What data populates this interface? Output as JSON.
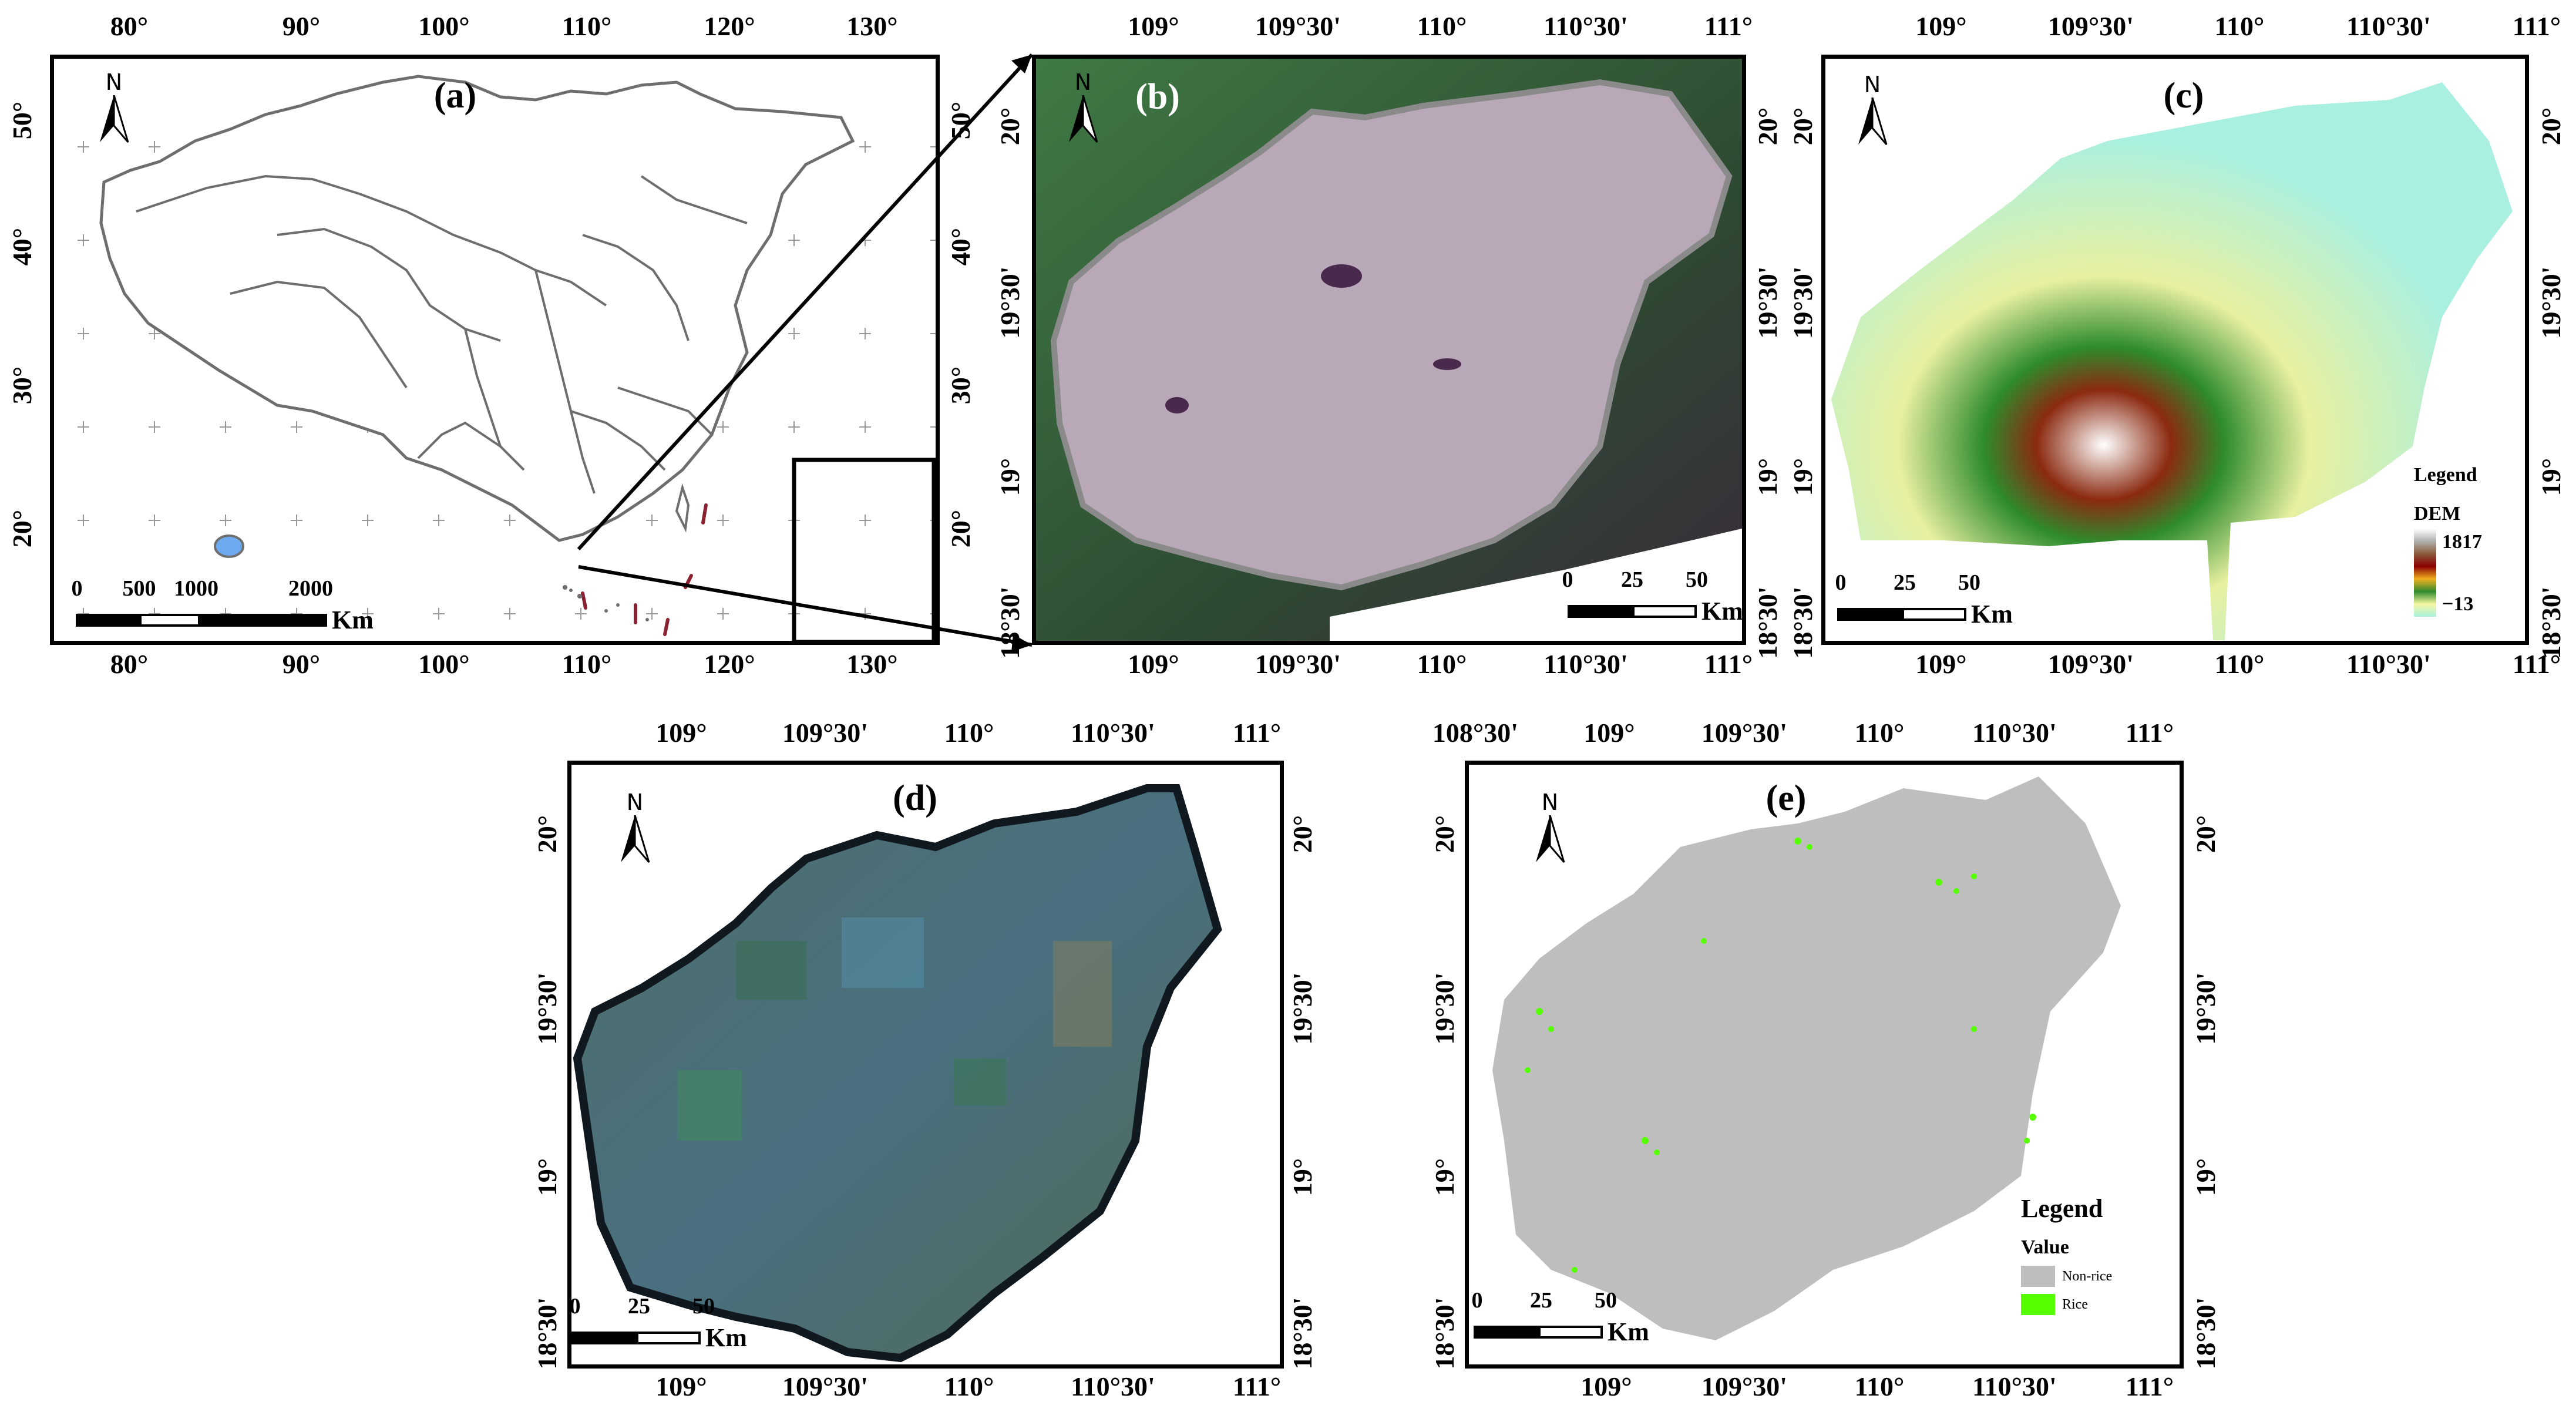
{
  "figure": {
    "panels": [
      {
        "id": "a",
        "label": "(a)",
        "description": "Map of China with provincial boundaries; Hainan Island highlighted in blue; South China Sea inset",
        "top_ticks": [
          "80°",
          "90°",
          "100°",
          "110°",
          "120°",
          "130°"
        ],
        "bottom_ticks": [
          "80°",
          "90°",
          "100°",
          "110°",
          "120°",
          "130°"
        ],
        "left_ticks": [
          "50°",
          "40°",
          "30°",
          "20°"
        ],
        "right_ticks": [
          "50°",
          "40°",
          "30°",
          "20°"
        ],
        "north": "N",
        "scale": {
          "numbers": [
            "0",
            "500",
            "1000",
            "2000"
          ],
          "unit": "Km"
        },
        "colors": {
          "boundary": "#6e6e6e",
          "highlight": "#6eaaf0",
          "dashed_line": "#8b2232"
        }
      },
      {
        "id": "b",
        "label": "(b)",
        "description": "Sentinel-1 SAR false-color composite of Hainan Island",
        "top_ticks": [
          "109°",
          "109°30'",
          "110°",
          "110°30'",
          "111°"
        ],
        "bottom_ticks": [
          "109°",
          "109°30'",
          "110°",
          "110°30'",
          "111°"
        ],
        "left_ticks": [
          "20°",
          "19°30'",
          "19°",
          "18°30'"
        ],
        "right_ticks": [
          "20°",
          "19°30'",
          "19°",
          "18°30'"
        ],
        "north": "N",
        "scale": {
          "numbers": [
            "0",
            "25",
            "50"
          ],
          "unit": "Km"
        },
        "colors": {
          "sea": "#3d6b40",
          "land": "#b8a8b8",
          "dark_sea": "#3a2a3c"
        }
      },
      {
        "id": "c",
        "label": "(c)",
        "description": "Digital Elevation Model of Hainan Island",
        "top_ticks": [
          "109°",
          "109°30'",
          "110°",
          "110°30'",
          "111°"
        ],
        "bottom_ticks": [
          "109°",
          "109°30'",
          "110°",
          "110°30'",
          "111°"
        ],
        "left_ticks": [
          "20°",
          "19°30'",
          "19°",
          "18°30'"
        ],
        "right_ticks": [
          "20°",
          "19°30'",
          "19°",
          "18°30'"
        ],
        "north": "N",
        "scale": {
          "numbers": [
            "0",
            "25",
            "50"
          ],
          "unit": "Km"
        },
        "legend": {
          "title": "Legend",
          "subtitle": "DEM",
          "max": "1817",
          "min": "−13"
        },
        "colors": {
          "ramp": [
            "#ffffff",
            "#b0b0b0",
            "#8b5a3c",
            "#8b0000",
            "#f0b020",
            "#2e8b2e",
            "#f5f5a0",
            "#aaf0e0"
          ]
        }
      },
      {
        "id": "d",
        "label": "(d)",
        "description": "Optical (Sentinel-2 true-color) mosaic of Hainan Island",
        "top_ticks": [
          "109°",
          "109°30'",
          "110°",
          "110°30'",
          "111°"
        ],
        "bottom_ticks": [
          "109°",
          "109°30'",
          "110°",
          "110°30'",
          "111°"
        ],
        "left_ticks": [
          "20°",
          "19°30'",
          "19°",
          "18°30'"
        ],
        "right_ticks": [
          "20°",
          "19°30'",
          "19°",
          "18°30'"
        ],
        "north": "N",
        "scale": {
          "numbers": [
            "0",
            "25",
            "50"
          ],
          "unit": "Km"
        },
        "colors": {
          "land": "#4a6a6a",
          "edge": "#101820"
        }
      },
      {
        "id": "e",
        "label": "(e)",
        "description": "Rice / non-rice classification map of Hainan Island",
        "top_ticks": [
          "108°30'",
          "109°",
          "109°30'",
          "110°",
          "110°30'",
          "111°"
        ],
        "bottom_ticks": [
          "109°",
          "109°30'",
          "110°",
          "110°30'",
          "111°"
        ],
        "left_ticks": [
          "20°",
          "19°30'",
          "19°",
          "18°30'"
        ],
        "right_ticks": [
          "20°",
          "19°30'",
          "19°",
          "18°30'"
        ],
        "north": "N",
        "scale": {
          "numbers": [
            "0",
            "25",
            "50"
          ],
          "unit": "Km"
        },
        "legend": {
          "title": "Legend",
          "subtitle": "Value",
          "items": [
            {
              "label": "Non-rice",
              "color": "#bebebe"
            },
            {
              "label": "Rice",
              "color": "#55ff00"
            }
          ]
        }
      }
    ]
  }
}
